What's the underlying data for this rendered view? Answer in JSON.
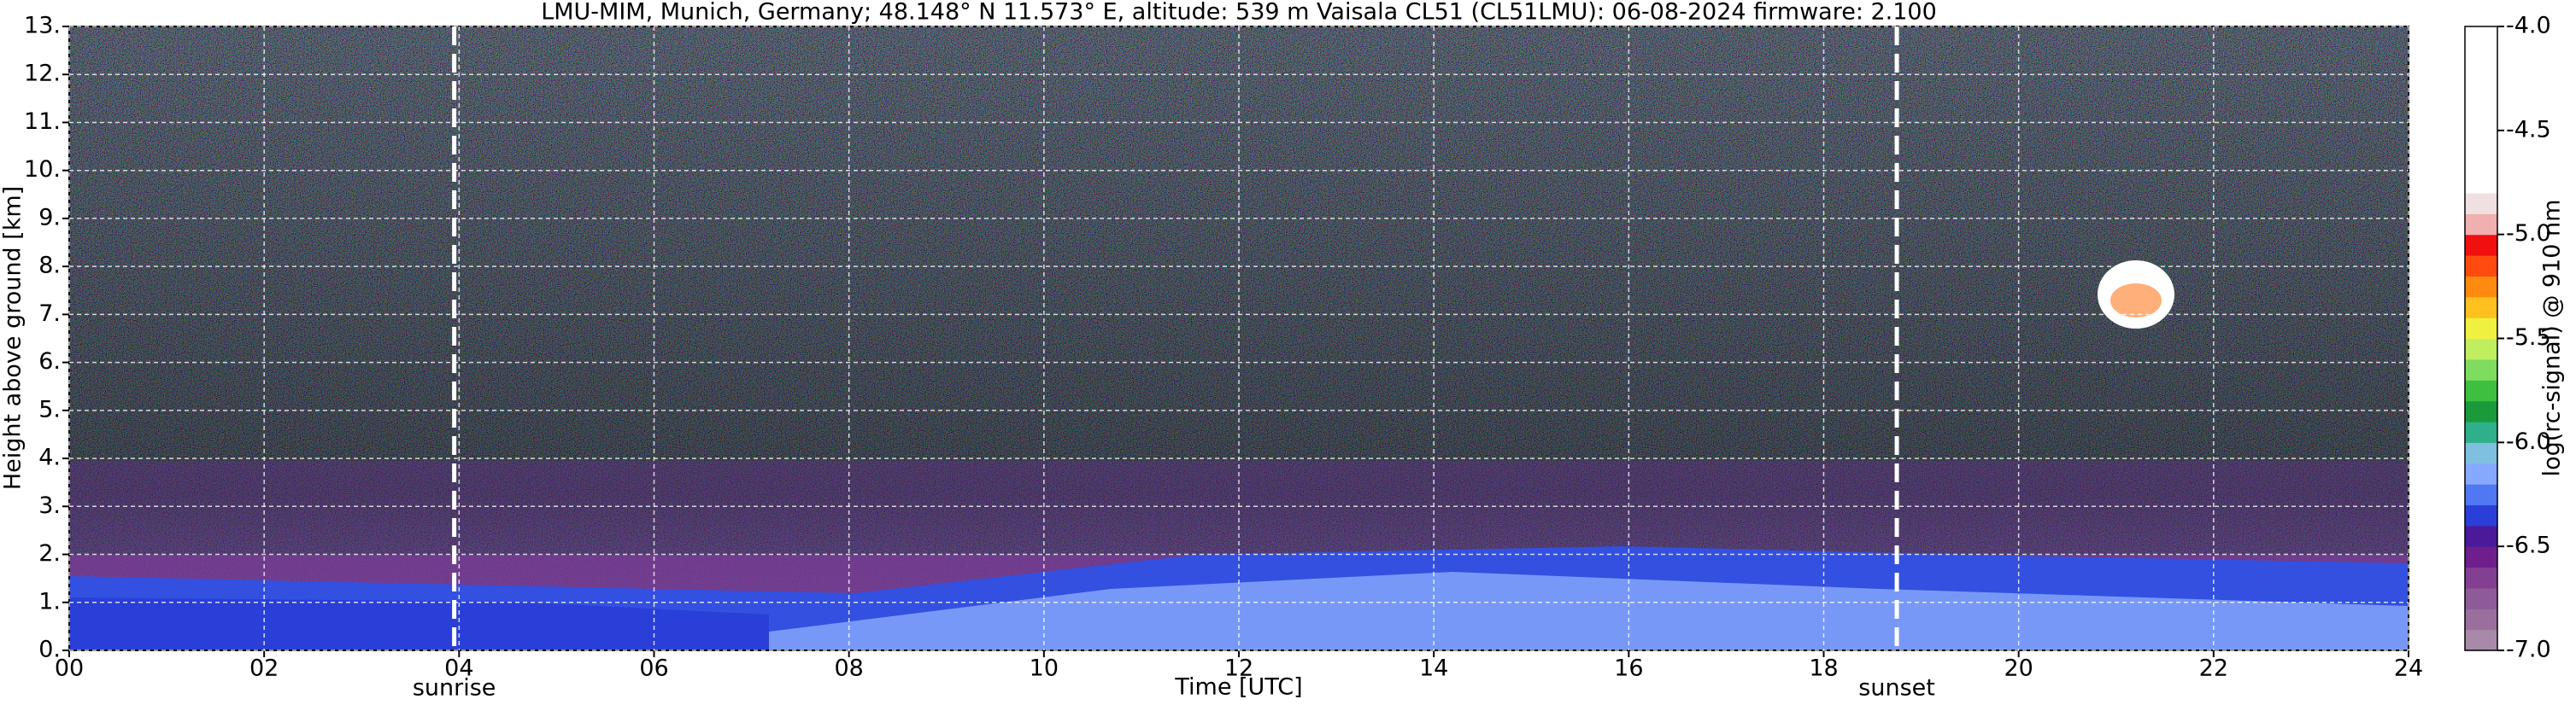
{
  "chart_data": {
    "type": "heatmap",
    "title": "LMU-MIM, Munich, Germany; 48.148° N 11.573° E, altitude: 539 m    Vaisala CL51 (CL51LMU): 06-08-2024    firmware: 2.100",
    "xlabel": "Time [UTC]",
    "ylabel": "Height above ground [km]",
    "xlim": [
      0,
      24
    ],
    "ylim": [
      0,
      13
    ],
    "xticks": [
      {
        "value": 0,
        "label": "00"
      },
      {
        "value": 2,
        "label": "02"
      },
      {
        "value": 4,
        "label": "04"
      },
      {
        "value": 6,
        "label": "06"
      },
      {
        "value": 8,
        "label": "08"
      },
      10,
      12,
      14,
      16,
      18,
      20,
      22,
      24
    ],
    "yticks": [
      {
        "value": 0,
        "label": "0."
      },
      {
        "value": 1,
        "label": "1."
      },
      {
        "value": 2,
        "label": "2."
      },
      {
        "value": 3,
        "label": "3."
      },
      {
        "value": 4,
        "label": "4."
      },
      {
        "value": 5,
        "label": "5."
      },
      {
        "value": 6,
        "label": "6."
      },
      {
        "value": 7,
        "label": "7."
      },
      {
        "value": 8,
        "label": "8."
      },
      {
        "value": 9,
        "label": "9."
      },
      {
        "value": 10,
        "label": "10."
      },
      {
        "value": 11,
        "label": "11."
      },
      {
        "value": 12,
        "label": "12."
      },
      {
        "value": 13,
        "label": "13."
      }
    ],
    "grid": true,
    "annotations": [
      {
        "x": 3.95,
        "text": "sunrise"
      },
      {
        "x": 18.75,
        "text": "sunset"
      }
    ],
    "colorbar": {
      "label": "log(rc-signal) @ 910 nm",
      "clim": [
        -7.0,
        -4.0
      ],
      "ticks": [
        {
          "value": -7.0,
          "label": "-7.0"
        },
        {
          "value": -6.5,
          "label": "-6.5"
        },
        {
          "value": -6.0,
          "label": "-6.0"
        },
        {
          "value": -5.5,
          "label": "-5.5"
        },
        {
          "value": -5.0,
          "label": "-5.0"
        },
        {
          "value": -4.5,
          "label": "-4.5"
        },
        {
          "value": -4.0,
          "label": "-4.0"
        }
      ],
      "colors": [
        "#a88aa8",
        "#9a6f9e",
        "#8f5a98",
        "#833f92",
        "#6e1f8c",
        "#4a1a9a",
        "#2a3fd8",
        "#4f78f2",
        "#86a8ff",
        "#7fc0e0",
        "#2fb08a",
        "#1a9a3a",
        "#3fbf3f",
        "#7fdc5f",
        "#c0ee5f",
        "#f0f040",
        "#ffc020",
        "#ff8a10",
        "#ff4a10",
        "#f01010",
        "#f0b0b0",
        "#f0e0e0",
        "#ffffff",
        "#ffffff",
        "#ffffff",
        "#ffffff",
        "#ffffff",
        "#ffffff",
        "#ffffff",
        "#ffffff"
      ]
    }
  }
}
